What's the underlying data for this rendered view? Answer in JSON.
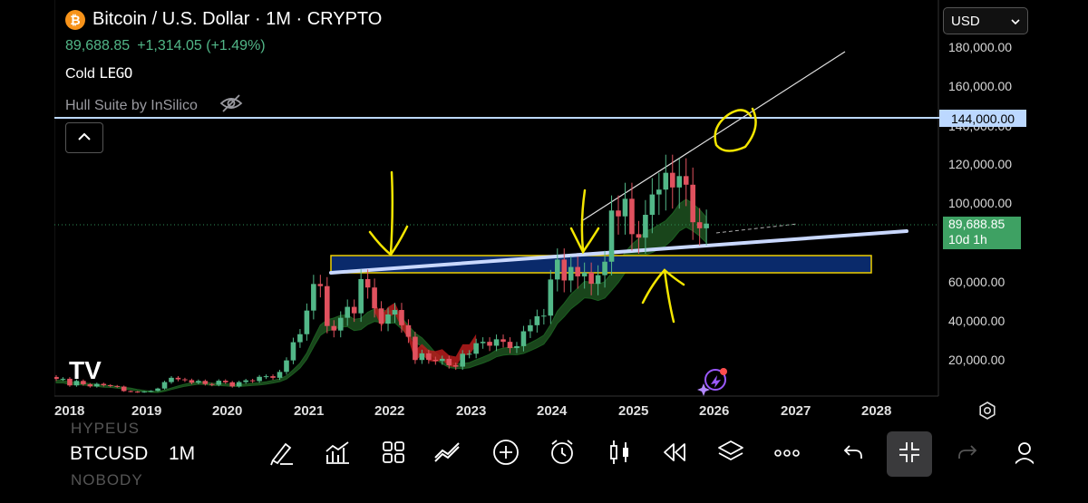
{
  "header": {
    "title": "Bitcoin / U.S. Dollar · 1M · CRYPTO",
    "price": "89,688.85",
    "change": "+1,314.05 (+1.49%)",
    "indicator_1": "Cold",
    "indicator_1_suffix": "LEGO",
    "indicator_2": "Hull Suite by InSilico"
  },
  "currency": {
    "selected": "USD"
  },
  "price_axis": {
    "labels": [
      "180,000.00",
      "160,000.00",
      "140,000.00",
      "120,000.00",
      "100,000.00",
      "60,000.00",
      "40,000.00",
      "20,000.00"
    ],
    "hline_tag": "144,000.00",
    "last_price_tag": "89,688.85",
    "countdown": "10d 1h"
  },
  "time_axis": {
    "labels": [
      "2018",
      "2019",
      "2020",
      "2021",
      "2022",
      "2023",
      "2024",
      "2025",
      "2026",
      "2027",
      "2028"
    ]
  },
  "toolbar": {
    "symbol": "BTCUSD",
    "interval": "1M",
    "ghost_top": "HYPEUS",
    "ghost_bottom": "NOBODY"
  },
  "logo_text": "TV",
  "colors": {
    "up": "#52b788",
    "down": "#e0515e",
    "hull_up": "#2e7d32",
    "hull_down": "#b71c1c",
    "zone_fill": "#0a2a6b",
    "zone_border": "#f0d000",
    "annotation": "#f4e600",
    "hline": "#bcd8ff"
  },
  "icons": [
    "bitcoin-icon",
    "eye-off-icon",
    "chevron-up-icon",
    "chevron-down-icon",
    "settings-icon",
    "draw-icon",
    "indicators-icon",
    "layout-icon",
    "compare-icon",
    "add-icon",
    "alarm-icon",
    "candle-type-icon",
    "replay-icon",
    "layers-icon",
    "more-icon",
    "undo-icon",
    "collapse-icon",
    "redo-icon",
    "user-icon"
  ]
}
